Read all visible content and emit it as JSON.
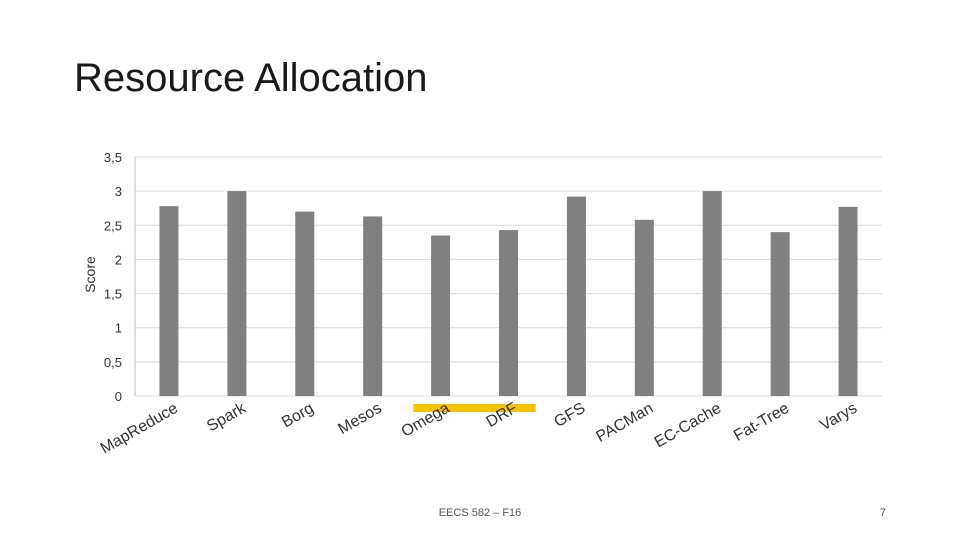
{
  "slide": {
    "title": "Resource Allocation",
    "footer": "EECS 582 – F16",
    "page_number": "7"
  },
  "chart_data": {
    "type": "bar",
    "title": "",
    "xlabel": "",
    "ylabel": "Score",
    "ylim": [
      0,
      3.5
    ],
    "yticks": [
      "0",
      "0,5",
      "1",
      "1,5",
      "2",
      "2,5",
      "3",
      "3,5"
    ],
    "grid": true,
    "legend": "none",
    "bar_color": "#808080",
    "highlight_color": "#f5c400",
    "highlighted_categories": [
      "Omega",
      "DRF"
    ],
    "categories": [
      "MapReduce",
      "Spark",
      "Borg",
      "Mesos",
      "Omega",
      "DRF",
      "GFS",
      "PACMan",
      "EC-Cache",
      "Fat-Tree",
      "Varys"
    ],
    "values": [
      2.78,
      3.0,
      2.7,
      2.63,
      2.35,
      2.43,
      2.92,
      2.58,
      3.0,
      2.4,
      2.77
    ]
  }
}
